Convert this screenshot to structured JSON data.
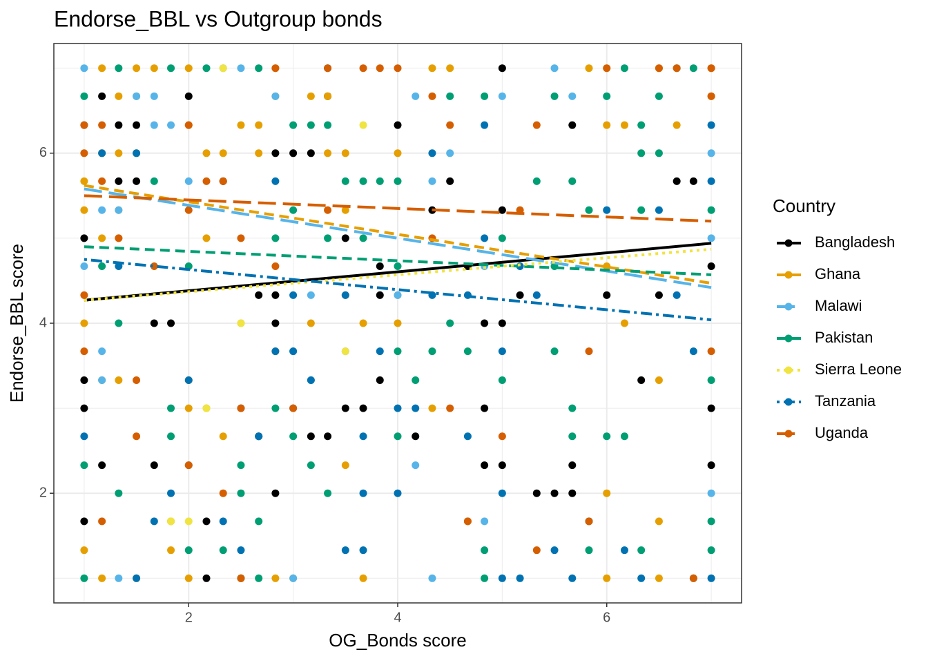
{
  "chart_data": {
    "type": "scatter",
    "title": "Endorse_BBL vs Outgroup bonds",
    "x_label": "OG_Bonds score",
    "y_label": "Endorse_BBL score",
    "xlim": [
      0.71,
      7.29
    ],
    "ylim": [
      0.71,
      7.29
    ],
    "xticks": [
      2,
      4,
      6
    ],
    "yticks": [
      2,
      4,
      6
    ],
    "x_minor_grid": [
      1,
      3,
      5,
      7
    ],
    "y_minor_grid": [
      1,
      3,
      5,
      7
    ],
    "grid": true,
    "legend_title": "Country",
    "legend_position": "right",
    "trend_x": [
      1,
      7
    ],
    "series": [
      {
        "name": "Bangladesh",
        "color": "#000000",
        "dash": "solid",
        "trend": [
          4.27,
          4.94
        ],
        "x": [
          1.17,
          1.33,
          1.5,
          2,
          1.33,
          1.5,
          1,
          2.33,
          2.83,
          3,
          3.33,
          3.17,
          3.5,
          3.83,
          3.83,
          4,
          4.5,
          4.33,
          5,
          5,
          5.67,
          4.67,
          4.83,
          5,
          6,
          6.5,
          6.67,
          6.83,
          7,
          1,
          1,
          1,
          1.17,
          1.67,
          1.67,
          2.67,
          3.17,
          3.5,
          3.67,
          3.83,
          4.17,
          2.83,
          2.17,
          2.17,
          3.33,
          2.67,
          2.83,
          2.83,
          4.83,
          5,
          5.33,
          5.5,
          5.67,
          5.67,
          6.33,
          7,
          7,
          4.83,
          5.17,
          1.83
        ],
        "values": [
          6.67,
          6.33,
          6.33,
          6.67,
          5.67,
          5.67,
          5,
          5.67,
          6,
          6,
          6.67,
          6,
          5,
          4.67,
          4.33,
          6.33,
          5.67,
          5.33,
          7,
          5.33,
          6.33,
          4.67,
          4,
          4,
          4.33,
          4.33,
          5.67,
          5.67,
          4.67,
          3.33,
          3,
          1.67,
          2.33,
          2.33,
          4,
          2.67,
          2.67,
          3,
          3,
          3.33,
          2.67,
          2,
          1,
          1.67,
          2.67,
          4.33,
          4.33,
          4,
          2.33,
          2.33,
          2,
          2,
          2,
          2.33,
          3.33,
          3,
          2.33,
          3,
          4.33,
          4
        ]
      },
      {
        "name": "Ghana",
        "color": "#E69F00",
        "dash": "dashed",
        "trend": [
          5.62,
          4.47
        ],
        "x": [
          1.17,
          1.5,
          1.67,
          2,
          2.83,
          1.33,
          1.5,
          2.83,
          3.17,
          3.33,
          1.17,
          1.33,
          1.5,
          2,
          2.5,
          2.67,
          2.17,
          2.33,
          2.67,
          3.33,
          3.5,
          1,
          1,
          1.33,
          1.17,
          1.33,
          2.17,
          1,
          1.17,
          1.33,
          2,
          2,
          2.17,
          2.33,
          3.5,
          1,
          1.17,
          1.5,
          2,
          2.5,
          2.83,
          3,
          3.67,
          4.67,
          6,
          6.5,
          6.5,
          6,
          6.17,
          6,
          6.5,
          4,
          3.17,
          3.67,
          4,
          3.5,
          6,
          6.17,
          6.67,
          7,
          7,
          4.5,
          4.33,
          5.83,
          4,
          6.5,
          4.33,
          2.5,
          3.5,
          2.83,
          1.83,
          1.83
        ],
        "values": [
          7,
          7,
          7,
          7,
          7,
          6.67,
          6.67,
          6.67,
          6.67,
          6.67,
          6,
          6,
          6,
          6.33,
          6.33,
          6.33,
          6,
          6,
          6,
          6,
          6,
          5.67,
          5.33,
          5.33,
          5,
          5,
          5,
          4,
          3.33,
          3.33,
          3.33,
          3,
          3,
          2.67,
          2.33,
          1.33,
          1,
          1,
          1,
          1,
          1,
          1,
          1,
          1.67,
          1,
          1,
          1.67,
          2,
          4,
          4.67,
          3.33,
          4.33,
          4,
          4,
          4,
          4.33,
          6.33,
          6.33,
          6.33,
          6.67,
          7,
          7,
          7,
          7,
          6,
          7,
          3,
          4,
          5.33,
          3.67,
          1.67,
          1.33
        ]
      },
      {
        "name": "Malawi",
        "color": "#56B4E9",
        "dash": "longdash",
        "trend": [
          5.58,
          4.42
        ],
        "x": [
          1,
          1.67,
          1.5,
          1.67,
          1.83,
          1.17,
          1,
          1.17,
          1.17,
          1.33,
          2,
          2.33,
          2.5,
          2.83,
          3.17,
          3.17,
          3.5,
          4,
          4.33,
          4.17,
          4.5,
          4.33,
          4.83,
          4.83,
          5,
          5.5,
          5.67,
          7,
          7,
          7,
          3,
          3,
          4.17,
          1.33
        ],
        "values": [
          7,
          6.67,
          6.67,
          6.33,
          6.33,
          5.33,
          4.67,
          3.67,
          3.33,
          1,
          5.67,
          7,
          7,
          6.67,
          3.33,
          4.33,
          3.67,
          4.33,
          1,
          6.67,
          6,
          5.67,
          1.67,
          4.67,
          6.67,
          7,
          6.67,
          6,
          5,
          2,
          3.67,
          1,
          2.33,
          5.33
        ]
      },
      {
        "name": "Pakistan",
        "color": "#009E73",
        "dash": "dashed",
        "trend": [
          4.9,
          4.57
        ],
        "x": [
          1,
          1.33,
          1.83,
          2.17,
          2.67,
          1.67,
          1.17,
          1.33,
          1.33,
          1,
          1,
          2,
          2,
          1.83,
          1.83,
          2,
          2.5,
          2.5,
          2.33,
          2.67,
          2.67,
          2.5,
          2.83,
          3,
          3.17,
          3.33,
          2.83,
          3,
          3,
          3.17,
          3.33,
          3.33,
          3.5,
          3.67,
          3.83,
          3.67,
          4,
          4,
          4,
          4,
          4.17,
          4.33,
          4.5,
          4.67,
          4.5,
          4.83,
          5,
          5,
          4.83,
          4.83,
          5.5,
          5.5,
          5.67,
          5.67,
          5.83,
          5.83,
          5.83,
          6,
          6.17,
          6.33,
          6.5,
          6.67,
          6.83,
          6.33,
          6,
          6.17,
          6.33,
          7,
          7,
          7,
          7,
          5.33,
          5.67,
          5.5,
          6.33,
          6.5
        ],
        "values": [
          6.67,
          7,
          7,
          7,
          7,
          5.67,
          4.67,
          4,
          2,
          2.33,
          1,
          4.67,
          2.33,
          2.67,
          3,
          1.33,
          2.33,
          1,
          1.33,
          1,
          1.67,
          2,
          3,
          2.67,
          2.33,
          2,
          5,
          5.33,
          6.33,
          6.33,
          6.33,
          5,
          5.67,
          5.67,
          5.67,
          5,
          5.67,
          4.67,
          3.67,
          2.67,
          3.33,
          3.67,
          4,
          3.67,
          6.67,
          6.67,
          5,
          3.33,
          1.33,
          1,
          4.67,
          3.67,
          3,
          2.67,
          1.67,
          1.33,
          5.33,
          6.67,
          7,
          6.33,
          6.67,
          7,
          7,
          5.33,
          2.67,
          2.67,
          1.33,
          5.33,
          3.33,
          1.67,
          1.33,
          5.67,
          5.67,
          6.67,
          6,
          6
        ]
      },
      {
        "name": "Sierra Leone",
        "color": "#F0E442",
        "dash": "dotted",
        "trend": [
          4.27,
          4.87
        ],
        "x": [
          2.33,
          2.17,
          1.83,
          2,
          3.67,
          2.5,
          3.5,
          6
        ],
        "values": [
          7,
          3,
          1.67,
          1.67,
          6.33,
          4,
          3.67,
          7
        ]
      },
      {
        "name": "Tanzania",
        "color": "#0072B2",
        "dash": "dotdash",
        "trend": [
          4.75,
          4.04
        ],
        "x": [
          1,
          1.17,
          1.5,
          1.33,
          1,
          1.5,
          1.67,
          1.83,
          2,
          2.33,
          2.5,
          2.67,
          2.83,
          2.83,
          3,
          3.17,
          3.33,
          3.5,
          3.67,
          3.67,
          3.67,
          3.83,
          4,
          4,
          4.17,
          4.33,
          4.67,
          4.67,
          5,
          4.83,
          4.83,
          5,
          5,
          5.17,
          5.33,
          5.5,
          5.67,
          6,
          6.17,
          6.33,
          6.67,
          6.83,
          6.83,
          7,
          7,
          7,
          3,
          3.5,
          4.33,
          5.17,
          6.5,
          2.5,
          3
        ],
        "values": [
          6.33,
          6,
          6,
          4.67,
          2.67,
          1,
          1.67,
          2,
          3.33,
          1.67,
          1.33,
          2.67,
          3.67,
          5.67,
          3.67,
          3.33,
          7,
          1.33,
          1.33,
          2,
          2.67,
          3.67,
          3,
          2,
          3,
          4.33,
          2.67,
          4.33,
          1,
          5,
          6.33,
          2,
          3.67,
          1,
          4.33,
          1.33,
          1,
          5.33,
          1.33,
          1,
          4.33,
          1,
          3.67,
          6.33,
          5.67,
          1,
          4.33,
          4.33,
          6,
          4.67,
          5.33,
          3,
          3
        ]
      },
      {
        "name": "Uganda",
        "color": "#D55E00",
        "dash": "longdash",
        "trend": [
          5.5,
          5.2
        ],
        "x": [
          1,
          1.17,
          1,
          1.17,
          1.33,
          1,
          1,
          1.5,
          1.17,
          1.5,
          1.67,
          2,
          2.17,
          2.33,
          2,
          2.5,
          2.83,
          2.5,
          2.33,
          2,
          2.5,
          3,
          3.33,
          3.33,
          3.67,
          3.83,
          4,
          4.5,
          4.33,
          4.67,
          5,
          5.17,
          5.33,
          5.33,
          5.83,
          5.83,
          6,
          6.5,
          6.67,
          7,
          7,
          7,
          6.83,
          4.5,
          4.33,
          2.83
        ],
        "values": [
          6.33,
          6.33,
          6,
          5.67,
          5,
          4.33,
          3.67,
          3.33,
          1.67,
          2.67,
          4.67,
          6.33,
          5.67,
          5.67,
          5.33,
          5,
          7,
          3,
          2,
          2.33,
          1,
          3,
          5.33,
          7,
          7,
          7,
          7,
          6.33,
          5,
          1.67,
          2.67,
          5.33,
          1.33,
          6.33,
          3.67,
          1.67,
          7,
          7,
          7,
          7,
          6.67,
          3.67,
          1,
          3,
          6.67,
          4.67
        ]
      }
    ]
  }
}
